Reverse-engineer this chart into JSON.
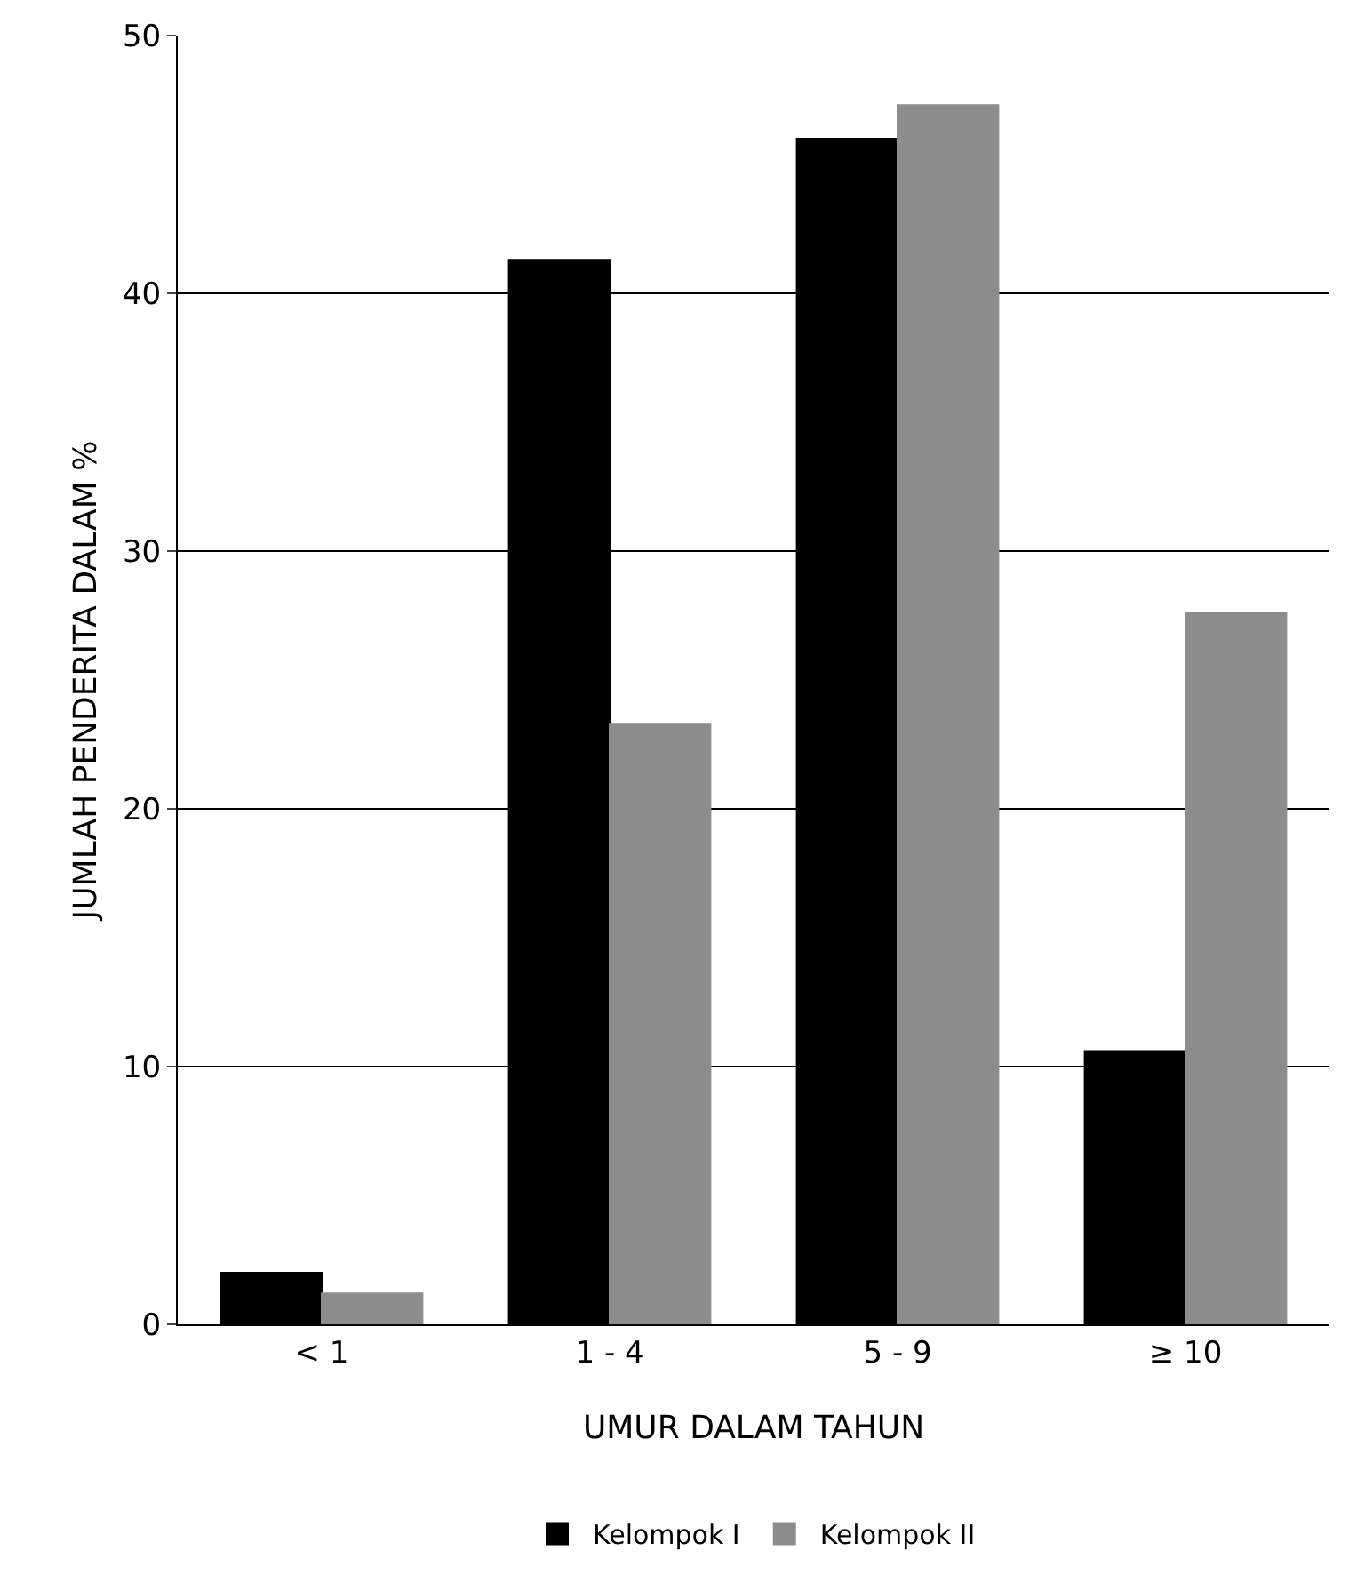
{
  "chart_data": {
    "type": "bar",
    "xlabel": "UMUR DALAM TAHUN",
    "ylabel": "JUMLAH PENDERITA DALAM %",
    "categories": [
      "< 1",
      "1 - 4",
      "5 - 9",
      "≥ 10"
    ],
    "series": [
      {
        "name": "Kelompok I",
        "color": "#000000",
        "values": [
          2,
          41.3,
          46,
          10.6
        ]
      },
      {
        "name": "Kelompok II",
        "color": "#8c8c8c",
        "values": [
          1.2,
          23.3,
          47.3,
          27.6
        ]
      }
    ],
    "ylim": [
      0,
      50
    ],
    "yticks": [
      0,
      10,
      20,
      30,
      40,
      50
    ],
    "grid": "y",
    "legend": "bottom"
  }
}
